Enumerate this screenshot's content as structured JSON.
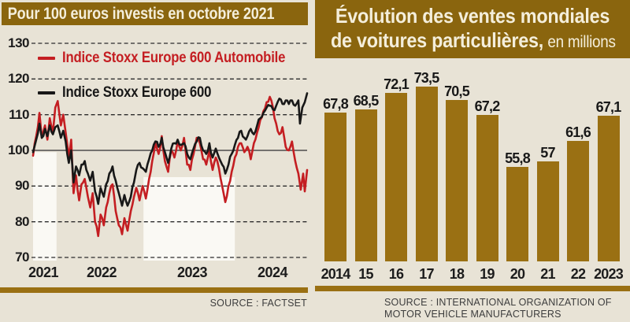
{
  "colors": {
    "background": "#e8e3d6",
    "banner": "#8a650e",
    "gold": "#9a7013",
    "bar": "#9a7013",
    "band": "#faf9f4",
    "red_line": "#c41e22",
    "black_line": "#181818"
  },
  "left_panel": {
    "title": "Pour 100 euros investis en octobre 2021",
    "source": "SOURCE : FACTSET"
  },
  "right_panel": {
    "title_line1": "Évolution des ventes mondiales",
    "title_line2": "de voitures particulières,",
    "title_suffix": "en millions",
    "source": "SOURCE : INTERNATIONAL ORGANIZATION OF MOTOR VEHICLE MANUFACTURERS"
  },
  "chart_data": [
    {
      "type": "line",
      "title": "Pour 100 euros investis en octobre 2021",
      "ylim": [
        70,
        130
      ],
      "yticks": [
        130,
        120,
        110,
        100,
        90,
        80,
        70
      ],
      "baseline": 100,
      "grid": "dashed-horizontal",
      "x_domain_months": [
        0,
        34.5
      ],
      "x_start": "octobre 2021",
      "xticks": [
        {
          "label": "2021",
          "x": 55
        },
        {
          "label": "2022",
          "x": 129
        },
        {
          "label": "2023",
          "x": 244
        },
        {
          "label": "2024",
          "x": 346
        }
      ],
      "highlight_bands": [
        {
          "t0": 0,
          "t1": 2.95,
          "top_value": 99.5
        },
        {
          "t0": 13.9,
          "t1": 25.4,
          "top_value": 92.5
        }
      ],
      "series": [
        {
          "id": "stoxx-600-automobile",
          "name": "Indice Stoxx Europe 600 Automobile",
          "color": "#c41e22",
          "points": [
            [
              0,
              98.5
            ],
            [
              0.4,
              104
            ],
            [
              0.8,
              110.5
            ],
            [
              1.1,
              103.5
            ],
            [
              1.5,
              107
            ],
            [
              1.8,
              103
            ],
            [
              2.1,
              109
            ],
            [
              2.5,
              105
            ],
            [
              2.8,
              112
            ],
            [
              3.1,
              113.8
            ],
            [
              3.5,
              107
            ],
            [
              3.8,
              110
            ],
            [
              4.1,
              105
            ],
            [
              4.5,
              98
            ],
            [
              4.8,
              103
            ],
            [
              5.1,
              88
            ],
            [
              5.4,
              93
            ],
            [
              5.8,
              86
            ],
            [
              6.1,
              90.5
            ],
            [
              6.5,
              92
            ],
            [
              6.9,
              87
            ],
            [
              7.2,
              84
            ],
            [
              7.5,
              88
            ],
            [
              7.8,
              80
            ],
            [
              8.2,
              76
            ],
            [
              8.5,
              82
            ],
            [
              8.9,
              79
            ],
            [
              9.2,
              84
            ],
            [
              9.6,
              88
            ],
            [
              10,
              90.5
            ],
            [
              10.4,
              83
            ],
            [
              10.8,
              79
            ],
            [
              11.2,
              76.5
            ],
            [
              11.5,
              81
            ],
            [
              11.9,
              77.5
            ],
            [
              12.3,
              83
            ],
            [
              12.7,
              87
            ],
            [
              13,
              89.5
            ],
            [
              13.4,
              86
            ],
            [
              13.8,
              90
            ],
            [
              14.2,
              86.5
            ],
            [
              14.6,
              92
            ],
            [
              15,
              97
            ],
            [
              15.4,
              102
            ],
            [
              15.8,
              99
            ],
            [
              16.2,
              104
            ],
            [
              16.6,
              97
            ],
            [
              17,
              94
            ],
            [
              17.4,
              100
            ],
            [
              17.8,
              98
            ],
            [
              18.2,
              102.5
            ],
            [
              18.6,
              100
            ],
            [
              19,
              103.5
            ],
            [
              19.4,
              96
            ],
            [
              19.8,
              94.5
            ],
            [
              20.2,
              99
            ],
            [
              20.6,
              103.5
            ],
            [
              21,
              102
            ],
            [
              21.4,
              97.5
            ],
            [
              21.8,
              96
            ],
            [
              22.2,
              100
            ],
            [
              22.6,
              94.5
            ],
            [
              23,
              98
            ],
            [
              23.4,
              95
            ],
            [
              23.8,
              90
            ],
            [
              24.2,
              85.5
            ],
            [
              24.6,
              90
            ],
            [
              25,
              94
            ],
            [
              25.4,
              98
            ],
            [
              25.8,
              101
            ],
            [
              26.2,
              102
            ],
            [
              26.6,
              99.5
            ],
            [
              27,
              101
            ],
            [
              27.4,
              97.5
            ],
            [
              27.8,
              102
            ],
            [
              28.2,
              105
            ],
            [
              28.6,
              108.5
            ],
            [
              29,
              111
            ],
            [
              29.4,
              113.5
            ],
            [
              29.8,
              115
            ],
            [
              30.2,
              112
            ],
            [
              30.6,
              107.5
            ],
            [
              31,
              104.5
            ],
            [
              31.4,
              106.5
            ],
            [
              31.8,
              101
            ],
            [
              32.2,
              100
            ],
            [
              32.6,
              102.5
            ],
            [
              33,
              97
            ],
            [
              33.4,
              93.5
            ],
            [
              33.7,
              89
            ],
            [
              34,
              93.5
            ],
            [
              34.2,
              88.5
            ],
            [
              34.5,
              94.5
            ]
          ]
        },
        {
          "id": "stoxx-600",
          "name": "Indice Stoxx Europe 600",
          "color": "#181818",
          "points": [
            [
              0,
              99.5
            ],
            [
              0.4,
              103
            ],
            [
              0.8,
              107.5
            ],
            [
              1.1,
              103.5
            ],
            [
              1.5,
              106
            ],
            [
              1.8,
              104
            ],
            [
              2.1,
              107
            ],
            [
              2.5,
              104.5
            ],
            [
              2.8,
              106.5
            ],
            [
              3.1,
              107
            ],
            [
              3.5,
              103.5
            ],
            [
              3.8,
              105.5
            ],
            [
              4.1,
              102.5
            ],
            [
              4.5,
              96.5
            ],
            [
              4.8,
              100
            ],
            [
              5.1,
              91
            ],
            [
              5.4,
              95.5
            ],
            [
              5.8,
              93
            ],
            [
              6.1,
              96
            ],
            [
              6.5,
              97
            ],
            [
              6.9,
              93.5
            ],
            [
              7.2,
              91.5
            ],
            [
              7.5,
              94
            ],
            [
              7.8,
              88.5
            ],
            [
              8.2,
              85
            ],
            [
              8.5,
              89.5
            ],
            [
              8.9,
              87
            ],
            [
              9.2,
              90.5
            ],
            [
              9.6,
              93.5
            ],
            [
              10,
              95.5
            ],
            [
              10.4,
              91.5
            ],
            [
              10.8,
              88
            ],
            [
              11.2,
              84.5
            ],
            [
              11.5,
              87.5
            ],
            [
              11.9,
              84.5
            ],
            [
              12.3,
              87
            ],
            [
              12.7,
              91
            ],
            [
              13,
              94.5
            ],
            [
              13.4,
              96.5
            ],
            [
              13.8,
              95
            ],
            [
              14.2,
              94
            ],
            [
              14.6,
              97.5
            ],
            [
              15,
              100
            ],
            [
              15.4,
              102.5
            ],
            [
              15.8,
              101
            ],
            [
              16.2,
              103.5
            ],
            [
              16.6,
              99.5
            ],
            [
              17,
              96.5
            ],
            [
              17.4,
              100.5
            ],
            [
              17.8,
              102
            ],
            [
              18.2,
              103
            ],
            [
              18.6,
              101.5
            ],
            [
              19,
              102
            ],
            [
              19.4,
              99
            ],
            [
              19.8,
              97.5
            ],
            [
              20.2,
              100.5
            ],
            [
              20.6,
              102.5
            ],
            [
              21,
              103.5
            ],
            [
              21.4,
              100
            ],
            [
              21.8,
              99
            ],
            [
              22.2,
              102
            ],
            [
              22.6,
              98
            ],
            [
              23,
              100.5
            ],
            [
              23.4,
              98
            ],
            [
              23.8,
              96
            ],
            [
              24.2,
              93.5
            ],
            [
              24.6,
              96
            ],
            [
              25,
              99
            ],
            [
              25.4,
              101.5
            ],
            [
              25.8,
              103.5
            ],
            [
              26.2,
              105.5
            ],
            [
              26.6,
              103.5
            ],
            [
              27,
              104
            ],
            [
              27.4,
              106
            ],
            [
              27.8,
              104.5
            ],
            [
              28.2,
              107
            ],
            [
              28.6,
              109
            ],
            [
              29,
              110.5
            ],
            [
              29.4,
              112
            ],
            [
              29.8,
              112.5
            ],
            [
              30.2,
              111.5
            ],
            [
              30.6,
              112.5
            ],
            [
              31,
              114.5
            ],
            [
              31.4,
              113
            ],
            [
              31.8,
              114
            ],
            [
              32.2,
              113
            ],
            [
              32.6,
              114
            ],
            [
              33,
              112.5
            ],
            [
              33.4,
              114
            ],
            [
              33.6,
              107.5
            ],
            [
              33.9,
              112
            ],
            [
              34.2,
              113.5
            ],
            [
              34.5,
              116
            ]
          ]
        }
      ]
    },
    {
      "type": "bar",
      "title": "Évolution des ventes mondiales de voitures particulières, en millions",
      "categories": [
        "2014",
        "15",
        "16",
        "17",
        "18",
        "19",
        "20",
        "21",
        "22",
        "2023"
      ],
      "values": [
        67.8,
        68.5,
        72.1,
        73.5,
        70.5,
        67.2,
        55.8,
        57,
        61.6,
        67.1
      ],
      "value_labels": [
        "67,8",
        "68,5",
        "72,1",
        "73,5",
        "70,5",
        "67,2",
        "55,8",
        "57",
        "61,6",
        "67,1"
      ],
      "ylabel": "en millions",
      "legend_position": "none"
    }
  ]
}
